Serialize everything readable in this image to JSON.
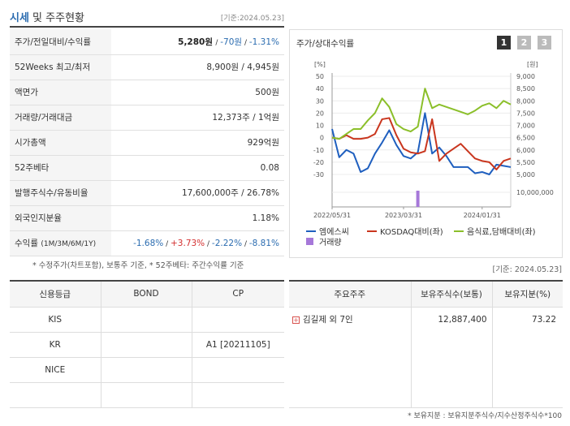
{
  "header": {
    "title_accent": "시세",
    "title_rest": " 및 주주현황",
    "date": "[기준:2024.05.23]"
  },
  "quote_rows": [
    {
      "label": "주가/전일대비/수익률",
      "price": "5,280원",
      "change": "-70원",
      "rate": "-1.31%"
    },
    {
      "label": "52Weeks 최고/최저",
      "value": "8,900원 / 4,945원"
    },
    {
      "label": "액면가",
      "value": "500원"
    },
    {
      "label": "거래량/거래대금",
      "value": "12,373주 / 1억원"
    },
    {
      "label": "시가총액",
      "value": "929억원"
    },
    {
      "label": "52주베타",
      "value": "0.08"
    },
    {
      "label": "발행주식수/유동비율",
      "value": "17,600,000주 / 26.78%"
    },
    {
      "label": "외국인지분율",
      "value": "1.18%"
    },
    {
      "label": "수익률",
      "label_small": "(1M/3M/6M/1Y)",
      "r1": "-1.68%",
      "r3": "+3.73%",
      "r6": "-2.22%",
      "r12": "-8.81%"
    }
  ],
  "note_top": "* 수정주가(차트포함), 보통주 기준, * 52주베타: 주간수익률 기준",
  "chart_panel": {
    "title": "주가/상대수익률",
    "periods": [
      "1",
      "2",
      "3"
    ],
    "active_period": "1"
  },
  "chart_data": {
    "type": "line",
    "x": [
      "2022/05/31",
      "2022/06/30",
      "2022/07/31",
      "2022/08/31",
      "2022/09/30",
      "2022/10/31",
      "2022/11/30",
      "2022/12/31",
      "2023/01/31",
      "2023/02/28",
      "2023/03/31",
      "2023/04/15",
      "2023/04/30",
      "2023/05/31",
      "2023/06/30",
      "2023/07/31",
      "2023/08/31",
      "2023/09/30",
      "2023/10/31",
      "2023/11/30",
      "2023/12/31",
      "2024/01/31",
      "2024/02/29",
      "2024/03/31",
      "2024/04/30",
      "2024/05/23"
    ],
    "xticks": [
      "2022/05/31",
      "2023/03/31",
      "2024/01/31"
    ],
    "left_unit": "[%]",
    "right_unit": "[원]",
    "ylim_left": [
      -30,
      50
    ],
    "yticks_left": [
      -30,
      -20,
      -10,
      0,
      10,
      20,
      30,
      40,
      50
    ],
    "ylim_right": [
      5000,
      9000
    ],
    "yticks_right": [
      "5,000",
      "5,500",
      "6,000",
      "6,500",
      "7,000",
      "7,500",
      "8,000",
      "8,500",
      "9,000"
    ],
    "volume_tick": "10,000,000",
    "volume_max": 12000000,
    "series": [
      {
        "name": "엠에스씨",
        "color": "#1f5fbf",
        "axis": "left",
        "values": [
          7,
          -16,
          -10,
          -13,
          -28,
          -25,
          -13,
          -4,
          6,
          -6,
          -15,
          -17,
          -12,
          20,
          -13,
          -8,
          -15,
          -24,
          -24,
          -24,
          -29,
          -28,
          -30,
          -22,
          -23,
          -24
        ]
      },
      {
        "name": "KOSDAQ대비",
        "color": "#c9361e",
        "axis": "left",
        "values": [
          0,
          -1,
          2,
          -1,
          -1,
          0,
          3,
          15,
          16,
          2,
          -9,
          -12,
          -13,
          -11,
          15,
          -19,
          -13,
          -9,
          -5,
          -11,
          -17,
          -19,
          -20,
          -26,
          -19,
          -17
        ]
      },
      {
        "name": "음식료,담배대비",
        "color": "#8bbf2a",
        "axis": "left",
        "values": [
          0,
          -1,
          3,
          7,
          7,
          14,
          20,
          32,
          25,
          11,
          7,
          5,
          9,
          40,
          24,
          27,
          25,
          23,
          21,
          19,
          22,
          26,
          28,
          24,
          30,
          27
        ]
      }
    ],
    "volume": {
      "name": "거래량",
      "color": "#a678d9",
      "points": [
        {
          "x": "2023/04/30",
          "value": 12000000
        }
      ]
    }
  },
  "legend_labels": [
    "엠에스씨",
    "KOSDAQ대비(좌)",
    "음식료,담배대비(좌)",
    "거래량"
  ],
  "date_bottom": "[기준: 2024.05.23]",
  "credit": {
    "headers": [
      "신용등급",
      "BOND",
      "CP"
    ],
    "rows": [
      [
        "KIS",
        "",
        ""
      ],
      [
        "KR",
        "",
        "A1  [20211105]"
      ],
      [
        "NICE",
        "",
        ""
      ],
      [
        "",
        "",
        ""
      ]
    ]
  },
  "holders": {
    "headers": [
      "주요주주",
      "보유주식수(보통)",
      "보유지분(%)"
    ],
    "rows": [
      {
        "name": "김길제 외 7인",
        "shares": "12,887,400",
        "pct": "73.22"
      }
    ]
  },
  "note_bottom": "* 보유지분 : 보유지분주식수/지수산정주식수*100"
}
